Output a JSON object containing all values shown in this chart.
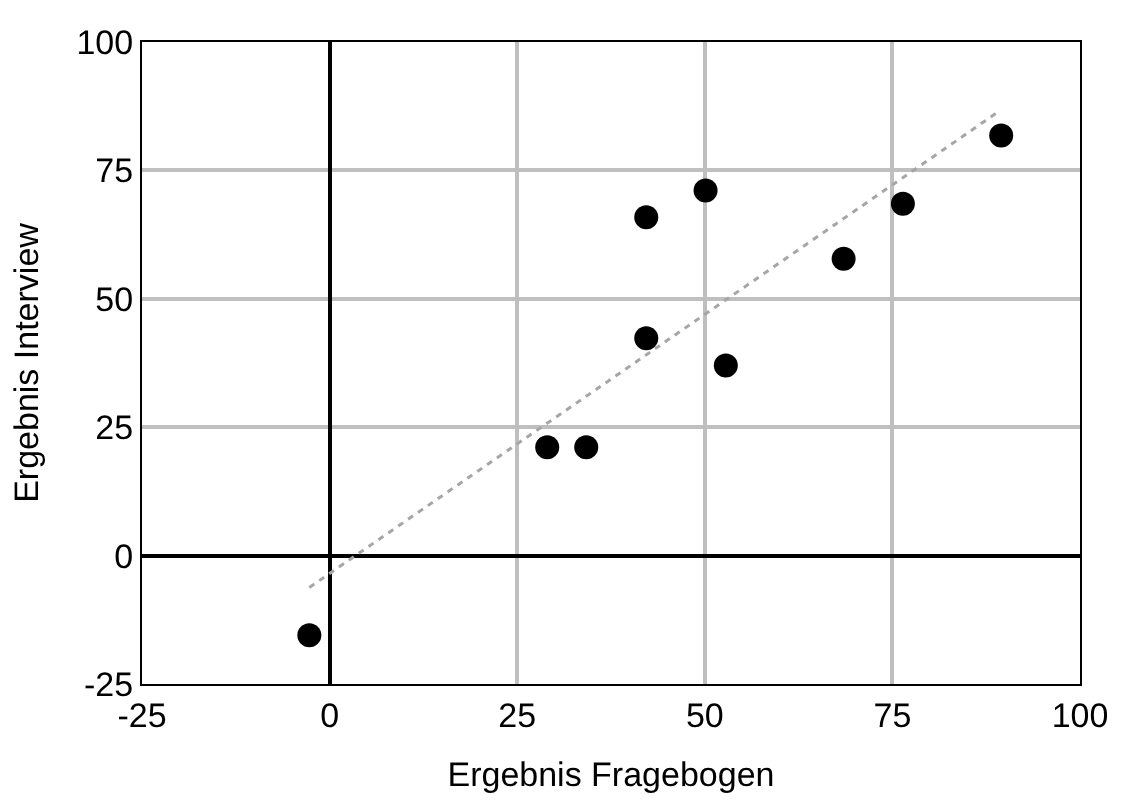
{
  "chart_data": {
    "type": "scatter",
    "xlabel": "Ergebnis Fragebogen",
    "ylabel": "Ergebnis Interview",
    "xlim": [
      -25,
      100
    ],
    "xticks": [
      -25,
      0,
      25,
      50,
      75,
      100
    ],
    "ylim": [
      -25,
      100
    ],
    "yticks": [
      -25,
      0,
      25,
      50,
      75,
      100
    ],
    "grid": true,
    "marker": "circle",
    "series": [
      {
        "type": "scatter",
        "color": "#000000",
        "x": [
          -2.7,
          29.0,
          34.2,
          42.2,
          42.2,
          50.1,
          52.8,
          68.5,
          76.4,
          89.5
        ],
        "values": [
          -15.5,
          21.1,
          21.1,
          42.3,
          65.9,
          71.1,
          37.0,
          57.8,
          68.5,
          81.8
        ]
      },
      {
        "type": "line",
        "color": "#a6a6a6",
        "line_style": "dotted",
        "marker": "none",
        "x": [
          -2.7,
          89.3
        ],
        "values": [
          -6.2,
          86.6
        ]
      }
    ]
  }
}
